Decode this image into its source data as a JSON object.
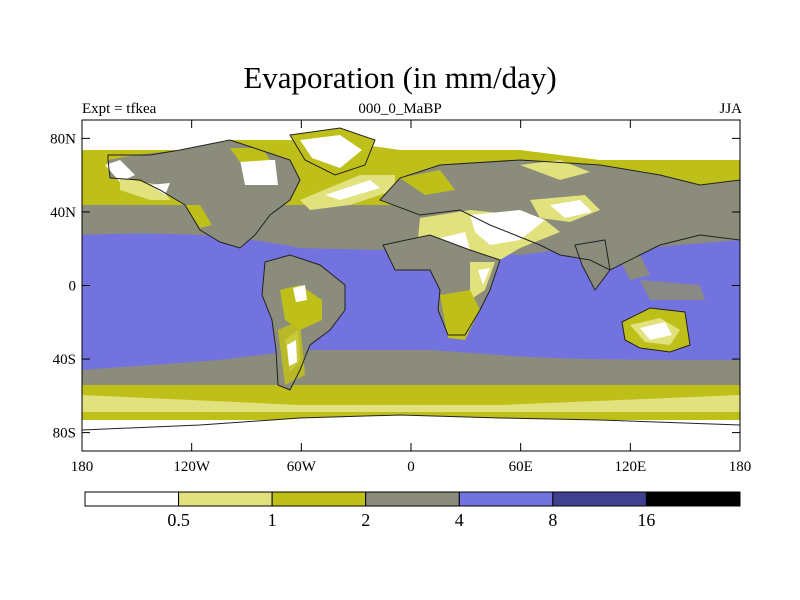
{
  "title": "Evaporation (in mm/day)",
  "subtitle_left": "Expt = tfkea",
  "subtitle_center": "000_0_MaBP",
  "subtitle_right": "JJA",
  "map": {
    "lat_labels": [
      "80N",
      "40N",
      "0",
      "40S",
      "80S"
    ],
    "lon_labels": [
      "180",
      "120W",
      "60W",
      "0",
      "60E",
      "120E",
      "180"
    ],
    "lat_values": [
      80,
      40,
      0,
      -40,
      -80
    ],
    "lon_values": [
      -180,
      -120,
      -60,
      0,
      60,
      120,
      180
    ],
    "lat_range": [
      -90,
      90
    ],
    "lon_range": [
      -180,
      180
    ]
  },
  "colorbar": {
    "colors": [
      "#ffffff",
      "#e1e17d",
      "#bfbf1a",
      "#8c8c7c",
      "#7373e0",
      "#404090",
      "#000000"
    ],
    "boundaries": [
      "0.5",
      "1",
      "2",
      "4",
      "8",
      "16"
    ]
  }
}
